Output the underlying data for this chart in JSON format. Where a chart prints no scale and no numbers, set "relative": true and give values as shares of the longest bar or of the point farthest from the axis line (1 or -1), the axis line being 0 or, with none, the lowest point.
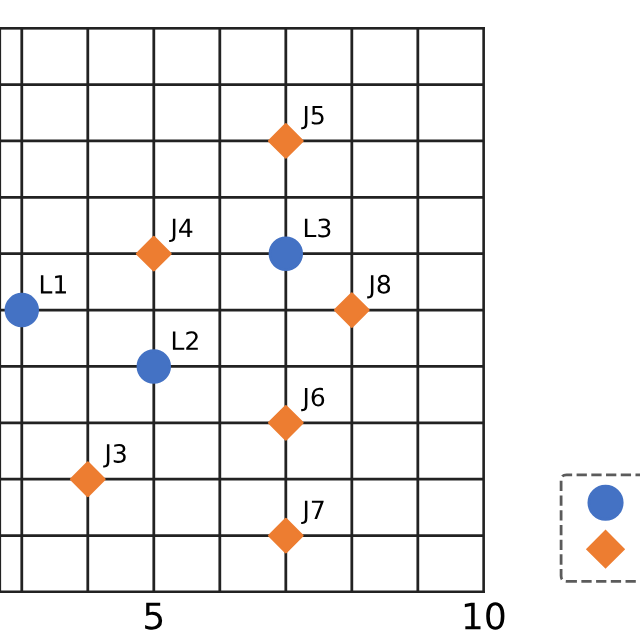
{
  "chart_data": {
    "type": "scatter",
    "series": [
      {
        "color": "#4472c4",
        "marker": "circle",
        "x": [
          3,
          5,
          7
        ],
        "values": [
          0.625,
          0.5,
          0.75
        ]
      },
      {
        "color": "#ed7d31",
        "marker": "diamond",
        "x": [
          7,
          5,
          8,
          7,
          4,
          7
        ],
        "values": [
          1,
          0.75,
          0.625,
          0.375,
          0.25,
          0.125
        ]
      }
    ],
    "annotations": [
      {
        "text": "L1",
        "x": 3,
        "y": 0.625
      },
      {
        "text": "L2",
        "x": 5,
        "y": 0.5
      },
      {
        "text": "L3",
        "x": 7,
        "y": 0.75
      },
      {
        "text": "J5",
        "x": 7,
        "y": 1
      },
      {
        "text": "J4",
        "x": 5,
        "y": 0.75
      },
      {
        "text": "J8",
        "x": 8,
        "y": 0.625
      },
      {
        "text": "J6",
        "x": 7,
        "y": 0.375
      },
      {
        "text": "J3",
        "x": 4,
        "y": 0.25
      },
      {
        "text": "J7",
        "x": 7,
        "y": 0.125
      }
    ],
    "relative": true,
    "xlim": [
      2.67,
      10
    ],
    "xticks": [
      {
        "value": 3,
        "label": null
      },
      {
        "value": 4,
        "label": null
      },
      5,
      {
        "value": 6,
        "label": null
      },
      {
        "value": 7,
        "label": null
      },
      {
        "value": 8,
        "label": null
      },
      {
        "value": 9,
        "label": null
      },
      10
    ],
    "grid": true
  }
}
